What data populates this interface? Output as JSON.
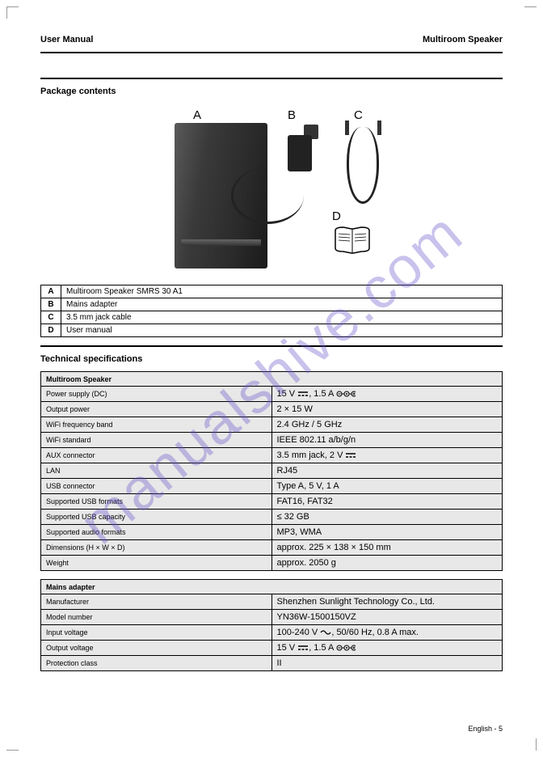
{
  "header": {
    "left": "User Manual",
    "right": "Multiroom Speaker"
  },
  "section1": {
    "title": "Package contents"
  },
  "labels": {
    "a": "A",
    "b": "B",
    "c": "C",
    "d": "D"
  },
  "items": [
    {
      "key": "A",
      "text": "Multiroom Speaker SMRS 30 A1"
    },
    {
      "key": "B",
      "text": "Mains adapter"
    },
    {
      "key": "C",
      "text": "3.5 mm jack cable"
    },
    {
      "key": "D",
      "text": "User manual"
    }
  ],
  "section2": {
    "title": "Technical specifications"
  },
  "spec_main_header": "Multiroom Speaker",
  "specs_main": [
    {
      "label": "Power supply (DC)",
      "value_prefix": "15 V ",
      "value_suffix": ", 1.5 A ",
      "has_dc": true,
      "has_polarity": true
    },
    {
      "label": "Output power",
      "value": "2 × 15 W"
    },
    {
      "label": "WiFi frequency band",
      "value": "2.4 GHz / 5 GHz"
    },
    {
      "label": "WiFi standard",
      "value": "IEEE 802.11 a/b/g/n"
    },
    {
      "label": "AUX connector",
      "value_prefix": "3.5 mm jack, 2 V ",
      "has_dc": true
    },
    {
      "label": "LAN",
      "value": "RJ45"
    },
    {
      "label": "USB connector",
      "value": "Type A, 5 V, 1 A"
    },
    {
      "label": "Supported USB formats",
      "value": "FAT16, FAT32"
    },
    {
      "label": "Supported USB capacity",
      "value": "≤ 32 GB"
    },
    {
      "label": "Supported audio formats",
      "value": "MP3, WMA"
    },
    {
      "label": "Dimensions (H × W × D)",
      "value": "approx. 225 × 138 × 150 mm"
    },
    {
      "label": "Weight",
      "value": "approx. 2050 g"
    }
  ],
  "spec_adapter_header": "Mains adapter",
  "specs_adapter": [
    {
      "label": "Manufacturer",
      "value": "Shenzhen Sunlight Technology Co., Ltd."
    },
    {
      "label": "Model number",
      "value": "YN36W-1500150VZ"
    },
    {
      "label": "Input voltage",
      "value_prefix": "100-240 V ",
      "value_suffix": ", 50/60 Hz, 0.8 A max.",
      "has_ac": true
    },
    {
      "label": "Output voltage",
      "value_prefix": "15 V ",
      "value_suffix": ", 1.5 A ",
      "has_dc": true,
      "has_polarity": true
    },
    {
      "label": "Protection class",
      "value": "II"
    }
  ],
  "footer": {
    "page": "English - 5"
  }
}
